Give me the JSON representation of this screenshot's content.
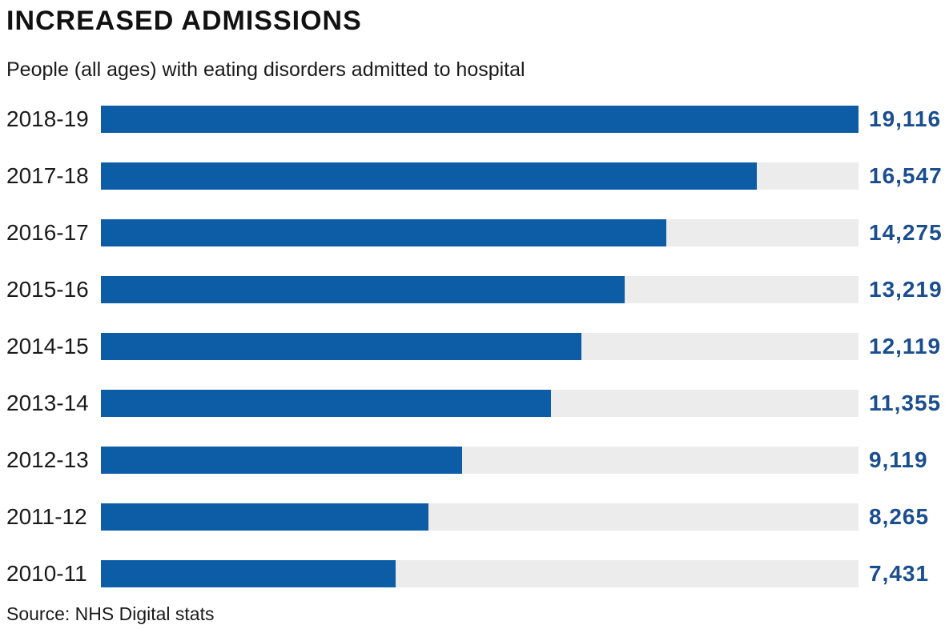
{
  "title": "INCREASED ADMISSIONS",
  "subtitle": "People (all ages) with eating disorders admitted to hospital",
  "source": "Source: NHS Digital stats",
  "colors": {
    "bar": "#0d5ca6",
    "track": "#ececec",
    "value_text": "#1a4e8f",
    "label_text": "#1a1a1a",
    "background": "#ffffff"
  },
  "chart_data": {
    "type": "bar",
    "orientation": "horizontal",
    "title": "INCREASED ADMISSIONS",
    "subtitle": "People (all ages) with eating disorders admitted to hospital",
    "source": "Source: NHS Digital stats",
    "categories": [
      "2018-19",
      "2017-18",
      "2016-17",
      "2015-16",
      "2014-15",
      "2013-14",
      "2012-13",
      "2011-12",
      "2010-11"
    ],
    "values": [
      19116,
      16547,
      14275,
      13219,
      12119,
      11355,
      9119,
      8265,
      7431
    ],
    "value_labels": [
      "19,116",
      "16,547",
      "14,275",
      "13,219",
      "12,119",
      "11,355",
      "9,119",
      "8,265",
      "7,431"
    ],
    "axis_max": 19116,
    "xlabel": "",
    "ylabel": "",
    "grid": false,
    "legend": false
  }
}
